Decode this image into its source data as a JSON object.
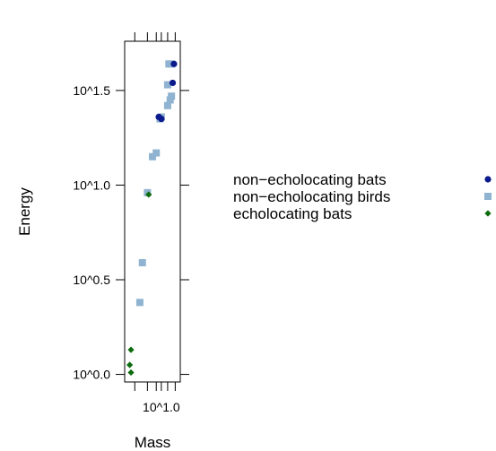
{
  "chart_data": {
    "type": "scatter",
    "xlabel": "Mass",
    "ylabel": "Energy",
    "x_scale": "log10",
    "y_scale": "log10",
    "xlim": [
      0.71,
      1.15
    ],
    "ylim": [
      -0.04,
      1.76
    ],
    "x_ticks": [
      {
        "value": 0.79,
        "label": ""
      },
      {
        "value": 0.89,
        "label": ""
      },
      {
        "value": 0.96,
        "label": ""
      },
      {
        "value": 1.0,
        "label": "10^1.0"
      },
      {
        "value": 1.05,
        "label": ""
      },
      {
        "value": 1.11,
        "label": ""
      }
    ],
    "y_ticks": [
      {
        "value": 0.0,
        "label": "10^0.0"
      },
      {
        "value": 0.5,
        "label": "10^0.5"
      },
      {
        "value": 1.0,
        "label": "10^1.0"
      },
      {
        "value": 1.5,
        "label": "10^1.5"
      }
    ],
    "series": [
      {
        "name": "non−echolocating bats",
        "color": "#0b1a8c",
        "marker": "circle",
        "points": [
          [
            1.1,
            1.64
          ],
          [
            1.09,
            1.54
          ],
          [
            1.0,
            1.35
          ],
          [
            0.98,
            1.36
          ]
        ]
      },
      {
        "name": "non−echolocating birds",
        "color": "#8fb3d0",
        "marker": "square",
        "points": [
          [
            1.08,
            1.64
          ],
          [
            1.06,
            1.64
          ],
          [
            1.05,
            1.53
          ],
          [
            1.08,
            1.47
          ],
          [
            1.07,
            1.45
          ],
          [
            1.05,
            1.42
          ],
          [
            1.0,
            1.36
          ],
          [
            0.99,
            1.35
          ],
          [
            0.96,
            1.17
          ],
          [
            0.93,
            1.15
          ],
          [
            0.89,
            0.96
          ],
          [
            0.85,
            0.59
          ],
          [
            0.83,
            0.38
          ]
        ]
      },
      {
        "name": "echolocating bats",
        "color": "#0c6b0c",
        "marker": "diamond",
        "points": [
          [
            0.76,
            0.13
          ],
          [
            0.75,
            0.05
          ],
          [
            0.76,
            0.01
          ],
          [
            0.9,
            0.95
          ]
        ]
      }
    ],
    "legend_position": "right"
  }
}
